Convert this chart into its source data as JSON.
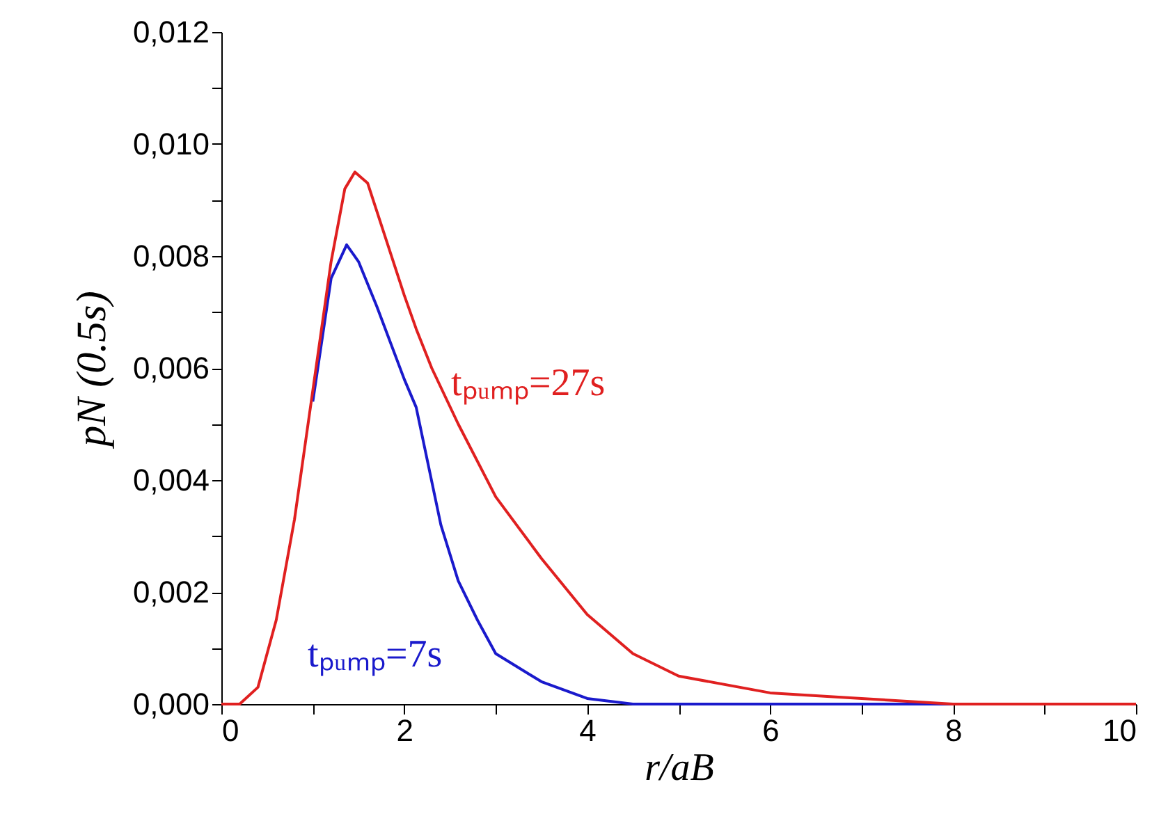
{
  "chart_data": {
    "type": "line",
    "xlabel": "r/aB",
    "ylabel": "pN (0.5s)",
    "xlim": [
      0,
      10
    ],
    "ylim": [
      0,
      0.012
    ],
    "xticks": [
      0,
      {
        "value": 1,
        "label": null
      },
      2,
      {
        "value": 3,
        "label": null
      },
      4,
      {
        "value": 5,
        "label": null
      },
      6,
      {
        "value": 7,
        "label": null
      },
      8,
      {
        "value": 9,
        "label": null
      },
      10
    ],
    "yticks": [
      {
        "value": 0,
        "label": "0,000"
      },
      {
        "value": 0.001,
        "label": null
      },
      {
        "value": 0.002,
        "label": "0,002"
      },
      {
        "value": 0.003,
        "label": null
      },
      {
        "value": 0.004,
        "label": "0,004"
      },
      {
        "value": 0.005,
        "label": null
      },
      {
        "value": 0.006,
        "label": "0,006"
      },
      {
        "value": 0.007,
        "label": null
      },
      {
        "value": 0.008,
        "label": "0,008"
      },
      {
        "value": 0.009,
        "label": null
      },
      {
        "value": 0.01,
        "label": "0,010"
      },
      {
        "value": 0.011,
        "label": null
      },
      {
        "value": 0.012,
        "label": "0,012"
      }
    ],
    "grid": false,
    "marker": "none",
    "line_style": "solid",
    "series": [
      {
        "color": "#e02020",
        "x": [
          0,
          0.2,
          0.4,
          0.5,
          0.6,
          0.8,
          1.0,
          1.2,
          1.35,
          1.46,
          1.6,
          1.8,
          2.0,
          2.13,
          2.3,
          2.59,
          3.0,
          3.5,
          4.0,
          4.5,
          5.0,
          6.0,
          7.0,
          8.0,
          9.0,
          10.0
        ],
        "values": [
          0,
          0,
          0.0003,
          0.0009,
          0.0015,
          0.0033,
          0.0056,
          0.0079,
          0.0092,
          0.0095,
          0.0093,
          0.0083,
          0.0073,
          0.0067,
          0.006,
          0.005,
          0.0037,
          0.0026,
          0.0016,
          0.0009,
          0.0005,
          0.0002,
          0.0001,
          0,
          0,
          0
        ]
      },
      {
        "color": "#1a1acc",
        "x": [
          1.0,
          1.2,
          1.37,
          1.5,
          1.7,
          2.0,
          2.13,
          2.4,
          2.59,
          2.8,
          3.0,
          3.5,
          4.0,
          4.5,
          5.0,
          6.0,
          8.0,
          10.0
        ],
        "values": [
          0.0054,
          0.0076,
          0.0082,
          0.0079,
          0.0071,
          0.0058,
          0.0053,
          0.0032,
          0.0022,
          0.0015,
          0.0009,
          0.0004,
          0.0001,
          0,
          0,
          0,
          0,
          0
        ]
      }
    ],
    "annotations": [
      "tₚᵤₘₚ=27s",
      "tₚᵤₘₚ=7s"
    ]
  }
}
